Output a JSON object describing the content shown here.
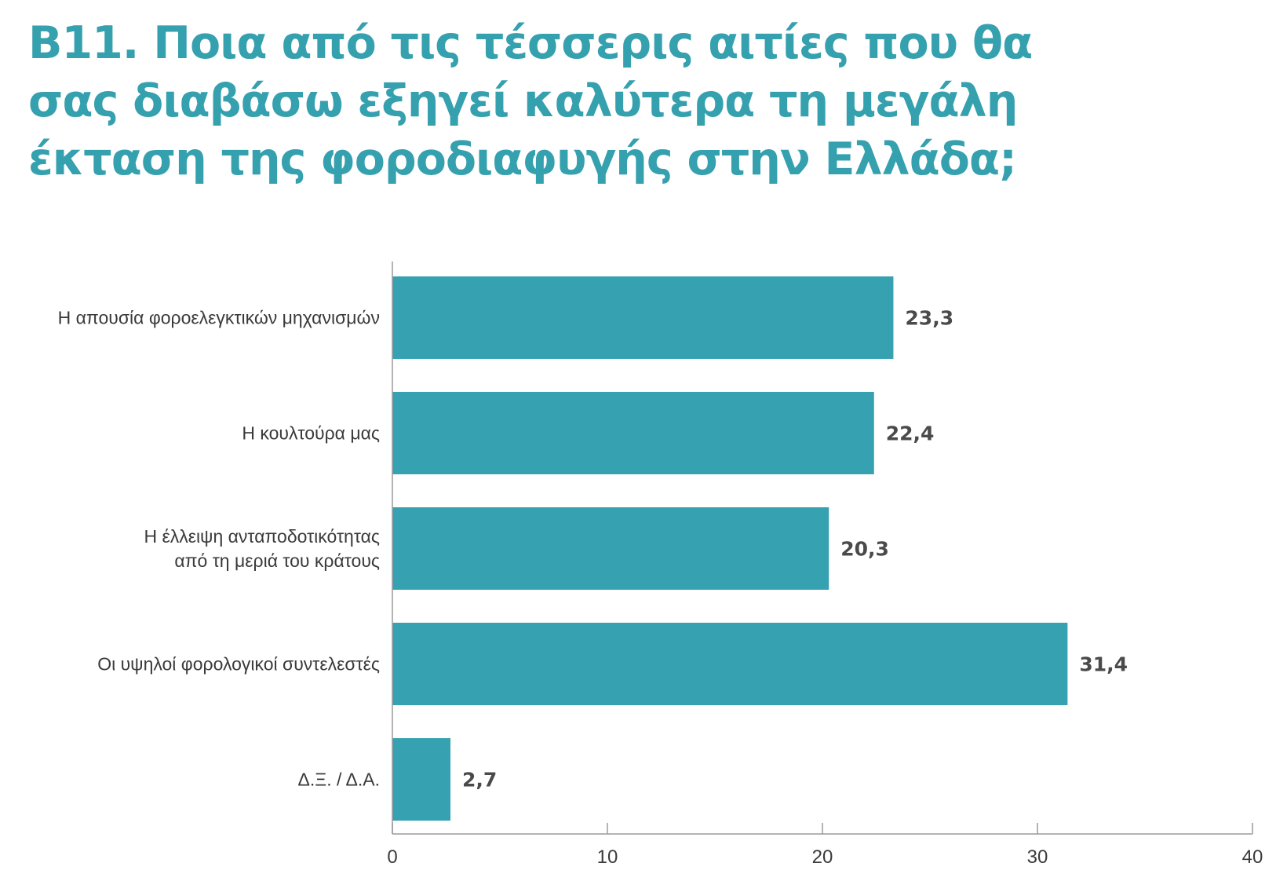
{
  "title_lines": [
    "B11. Ποια από τις τέσσερις αιτίες που θα",
    "σας διαβάσω εξηγεί καλύτερα τη μεγάλη",
    "έκταση της φοροδιαφυγής στην Ελλάδα;"
  ],
  "colors": {
    "bar": "#36a1b0",
    "title": "#35a0ae",
    "axis": "#9a9a9a"
  },
  "chart_data": {
    "type": "bar",
    "orientation": "horizontal",
    "title": "B11. Ποια από τις τέσσερις αιτίες που θα σας διαβάσω εξηγεί καλύτερα τη μεγάλη έκταση της φοροδιαφυγής στην Ελλάδα;",
    "categories": [
      [
        "Η απουσία φοροελεγκτικών μηχανισμών"
      ],
      [
        "Η κουλτούρα μας"
      ],
      [
        "Η έλλειψη ανταποδοτικότητας",
        "από τη μεριά του κράτους"
      ],
      [
        "Οι υψηλοί φορολογικοί συντελεστές"
      ],
      [
        "Δ.Ξ. / Δ.Α."
      ]
    ],
    "values": [
      23.3,
      22.4,
      20.3,
      31.4,
      2.7
    ],
    "value_labels": [
      "23,3",
      "22,4",
      "20,3",
      "31,4",
      "2,7"
    ],
    "xlim": [
      0,
      40
    ],
    "xticks": [
      0,
      10,
      20,
      30,
      40
    ],
    "grid": false,
    "legend": "none"
  }
}
